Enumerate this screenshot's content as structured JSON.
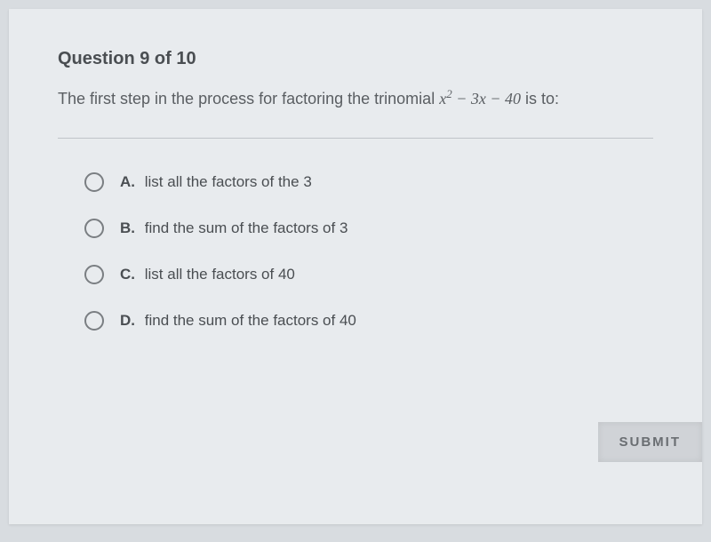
{
  "question": {
    "header": "Question 9 of 10",
    "prompt_before": "The first step in the process for factoring the trinomial ",
    "expression_prefix": "x",
    "expression_exp": "2",
    "expression_suffix": " − 3x − 40",
    "prompt_after": "  is to:"
  },
  "options": [
    {
      "letter": "A.",
      "text": "list all the factors of the 3"
    },
    {
      "letter": "B.",
      "text": "find the sum of the factors of 3"
    },
    {
      "letter": "C.",
      "text": "list all the factors of 40"
    },
    {
      "letter": "D.",
      "text": "find the sum of the factors of 40"
    }
  ],
  "submit_label": "SUBMIT",
  "colors": {
    "page_bg": "#d8dce0",
    "card_bg": "#e8ebee",
    "text_primary": "#4a4e52",
    "text_secondary": "#5a5e62",
    "divider": "#c0c4c8",
    "radio_border": "#7a7e82",
    "submit_bg": "#d0d3d7",
    "submit_text": "#6a6e72"
  }
}
